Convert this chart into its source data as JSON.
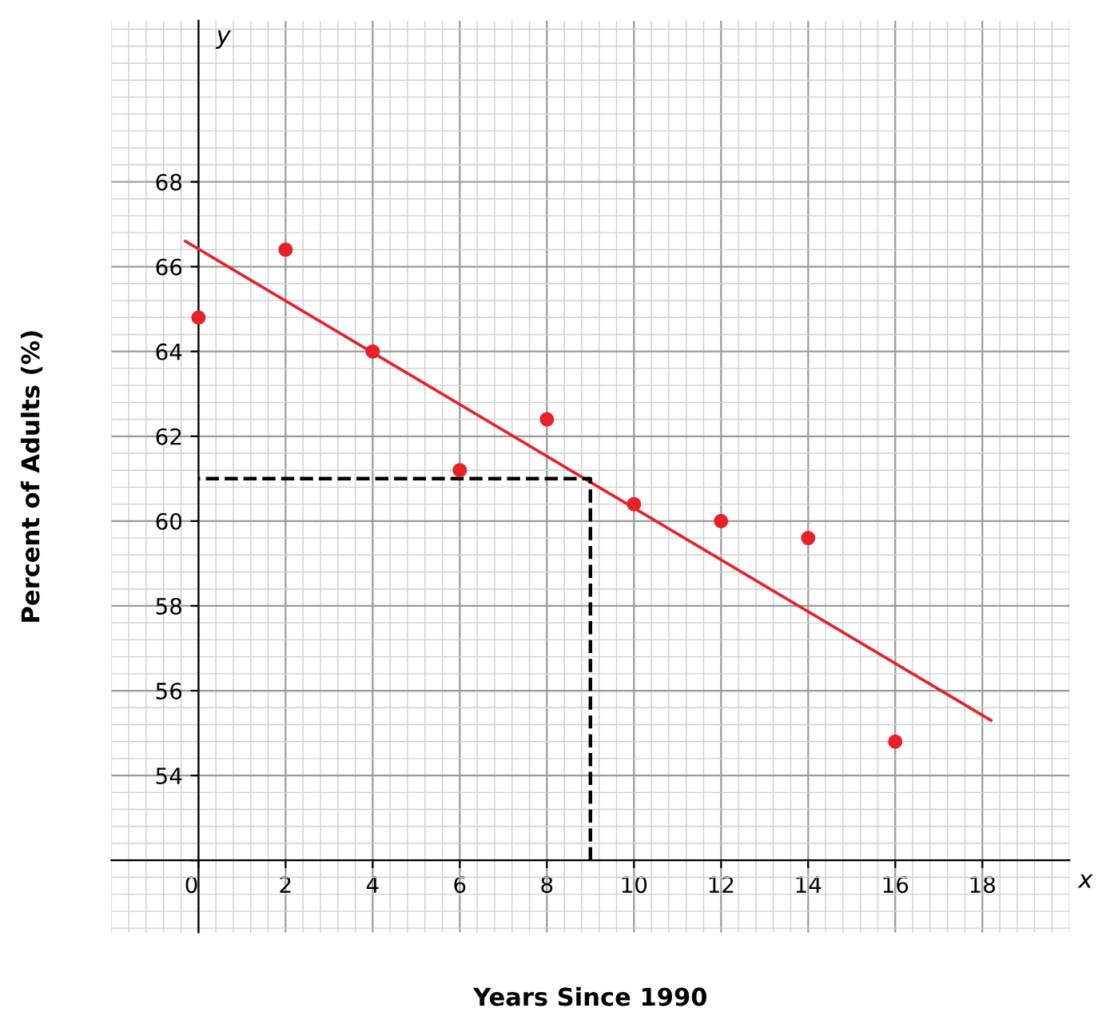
{
  "chart_data": {
    "type": "scatter",
    "xlabel": "Years Since 1990",
    "ylabel": "Percent of Adults (%)",
    "xlim": [
      -2,
      20
    ],
    "ylim": [
      50.3,
      71.8
    ],
    "xticks": [
      0,
      2,
      4,
      6,
      8,
      10,
      12,
      14,
      16,
      18
    ],
    "yticks": [
      {
        "value": 52,
        "label": null
      },
      54,
      56,
      58,
      60,
      62,
      64,
      66,
      68
    ],
    "grid": true,
    "series": [
      {
        "color": "#e8202a",
        "marker": "circle",
        "x": [
          0,
          2,
          4,
          6,
          8,
          10,
          12,
          14,
          16
        ],
        "values": [
          64.8,
          66.4,
          64.0,
          61.2,
          62.4,
          60.4,
          60.0,
          59.6,
          54.8
        ]
      },
      {
        "type": "line",
        "color": "#e8202a",
        "x": [
          -0.3,
          18.2
        ],
        "values": [
          66.6,
          55.3
        ]
      },
      {
        "type": "line",
        "color": "#000000",
        "line_style": "dashed",
        "x": [
          9,
          9,
          0
        ],
        "values": [
          52,
          61,
          61
        ]
      }
    ],
    "annotations": [
      "x",
      "y"
    ]
  }
}
